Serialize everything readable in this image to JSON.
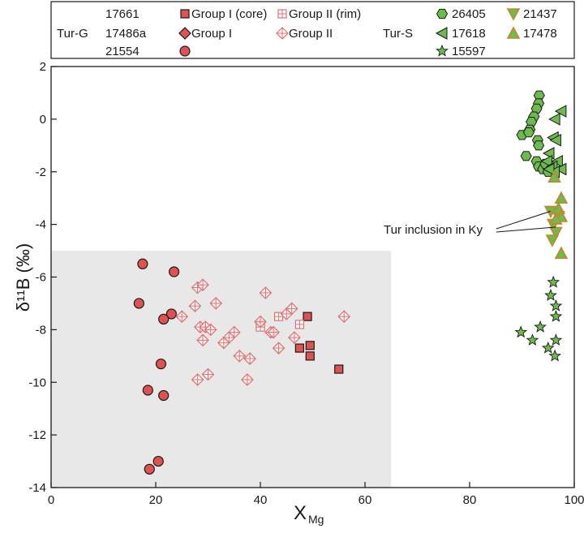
{
  "chart_data": {
    "type": "scatter",
    "xlabel_main": "X",
    "xlabel_sub": "Mg",
    "ylabel": "δ¹¹B (‰)",
    "xlim": [
      0,
      100
    ],
    "ylim": [
      -14,
      2
    ],
    "xticks": [
      0,
      20,
      40,
      60,
      80,
      100
    ],
    "yticks": [
      2,
      0,
      -2,
      -4,
      -6,
      -8,
      -10,
      -12,
      -14
    ],
    "grid": false,
    "shaded_region": {
      "x": [
        0,
        65
      ],
      "y": [
        -14,
        -5
      ],
      "color": "#e8e8e8"
    },
    "annotation": {
      "text": "Tur inclusion in Ky",
      "targets": [
        [
          95.5,
          -3.5
        ],
        [
          96.5,
          -4.1
        ]
      ]
    },
    "legend": {
      "placement": "top",
      "group_g_label": "Tur-G",
      "group_s_label": "Tur-S",
      "g_samples": [
        "17661",
        "17486a",
        "21554"
      ],
      "s_samples": [
        "26405",
        "17618",
        "15597",
        "21437",
        "17478"
      ],
      "keys": [
        {
          "label": "Group I (core)",
          "symbol": "square-filled"
        },
        {
          "label": "Group I",
          "symbol": "diamond-filled"
        },
        {
          "label": "Group II (rim)",
          "symbol": "square-cross"
        },
        {
          "label": "Group II",
          "symbol": "diamond-cross"
        }
      ]
    },
    "colors": {
      "red": "#e05252",
      "pink": "#e07070",
      "green": "#6dbb4c",
      "green_edge": "#1a1a1a",
      "orange_edge": "#c7852e",
      "shade": "#e8e8e8"
    },
    "series": [
      {
        "name": "17661",
        "marker": "square-filled",
        "points": [
          [
            49,
            -7.5
          ],
          [
            47.5,
            -8.7
          ],
          [
            49.5,
            -8.6
          ],
          [
            49.5,
            -9.0
          ],
          [
            55,
            -9.5
          ]
        ]
      },
      {
        "name": "21554",
        "marker": "circle-filled",
        "points": [
          [
            17.5,
            -5.5
          ],
          [
            23.5,
            -5.8
          ],
          [
            16.8,
            -7.0
          ],
          [
            23,
            -7.4
          ],
          [
            21.5,
            -7.6
          ],
          [
            21,
            -9.3
          ],
          [
            18.5,
            -10.3
          ],
          [
            21.5,
            -10.5
          ],
          [
            20.5,
            -13.0
          ],
          [
            18.8,
            -13.3
          ]
        ]
      },
      {
        "name": "Group II (rim)",
        "marker": "square-cross",
        "points": [
          [
            40,
            -7.8
          ],
          [
            40,
            -7.9
          ],
          [
            43.5,
            -7.5
          ],
          [
            47.5,
            -7.8
          ]
        ]
      },
      {
        "name": "Group II",
        "marker": "diamond-cross",
        "points": [
          [
            28,
            -6.4
          ],
          [
            29,
            -6.3
          ],
          [
            27.5,
            -7.1
          ],
          [
            31.5,
            -7.0
          ],
          [
            25,
            -7.5
          ],
          [
            28.5,
            -7.9
          ],
          [
            29.5,
            -7.9
          ],
          [
            30.5,
            -8.0
          ],
          [
            29,
            -8.4
          ],
          [
            35,
            -8.1
          ],
          [
            34,
            -8.3
          ],
          [
            33,
            -8.5
          ],
          [
            36,
            -9.0
          ],
          [
            38,
            -9.1
          ],
          [
            28,
            -9.9
          ],
          [
            30,
            -9.7
          ],
          [
            37.5,
            -9.9
          ],
          [
            41,
            -6.6
          ],
          [
            42,
            -8.1
          ],
          [
            42.5,
            -8.1
          ],
          [
            43.5,
            -8.7
          ],
          [
            45,
            -7.4
          ],
          [
            46,
            -7.2
          ],
          [
            46.5,
            -8.3
          ],
          [
            40,
            -7.7
          ],
          [
            56,
            -7.5
          ]
        ]
      },
      {
        "name": "26405",
        "marker": "hexagon",
        "points": [
          [
            93.3,
            0.9
          ],
          [
            93.2,
            0.6
          ],
          [
            92.8,
            0.4
          ],
          [
            92.3,
            0.1
          ],
          [
            91.8,
            -0.1
          ],
          [
            91.5,
            -0.4
          ],
          [
            90,
            -0.6
          ],
          [
            91.3,
            -0.5
          ],
          [
            93,
            -0.8
          ],
          [
            93.2,
            -1.0
          ],
          [
            90.8,
            -1.4
          ],
          [
            92.8,
            -1.6
          ],
          [
            93.2,
            -1.8
          ],
          [
            94,
            -1.9
          ],
          [
            95,
            -2.0
          ],
          [
            94.5,
            -1.7
          ]
        ]
      },
      {
        "name": "17618",
        "marker": "triangle-left",
        "points": [
          [
            97.5,
            0.3
          ],
          [
            96.3,
            0.0
          ],
          [
            96,
            -0.7
          ],
          [
            96.5,
            -0.8
          ],
          [
            95.2,
            -1.3
          ],
          [
            94.8,
            -1.6
          ],
          [
            96.8,
            -1.6
          ],
          [
            95.8,
            -1.8
          ],
          [
            97.5,
            -1.9
          ],
          [
            96.2,
            -2.0
          ],
          [
            95.2,
            -1.9
          ]
        ]
      },
      {
        "name": "21437",
        "marker": "triangle-down",
        "points": [
          [
            95.5,
            -3.5
          ],
          [
            97,
            -3.7
          ],
          [
            96,
            -4.0
          ],
          [
            96.5,
            -4.3
          ],
          [
            95.8,
            -4.6
          ]
        ]
      },
      {
        "name": "17478",
        "marker": "triangle-up",
        "points": [
          [
            97.5,
            -3.0
          ],
          [
            97,
            -3.4
          ],
          [
            97.5,
            -3.7
          ],
          [
            96.5,
            -3.8
          ],
          [
            97.5,
            -5.1
          ],
          [
            96.2,
            -2.2
          ]
        ]
      },
      {
        "name": "15597",
        "marker": "star",
        "points": [
          [
            96,
            -6.2
          ],
          [
            95.5,
            -6.7
          ],
          [
            96.5,
            -7.1
          ],
          [
            96.5,
            -7.5
          ],
          [
            93.5,
            -7.9
          ],
          [
            89.8,
            -8.1
          ],
          [
            92,
            -8.4
          ],
          [
            96.5,
            -8.4
          ],
          [
            95,
            -8.7
          ],
          [
            96.3,
            -9.0
          ]
        ]
      }
    ]
  }
}
